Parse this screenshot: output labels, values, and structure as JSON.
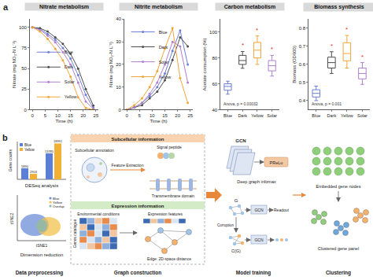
{
  "panel_labels": [
    "a",
    "b"
  ],
  "chart_data": [
    {
      "type": "line",
      "title": "Nitrate metabolism",
      "x_label": "Time (h)",
      "y_label": "Nitrate (mg NO₃-N L⁻¹)",
      "x": [
        0,
        3,
        6,
        9,
        12,
        15,
        18,
        21,
        24
      ],
      "series": [
        {
          "name": "Blue",
          "color": "#6c7fd8",
          "values": [
            100,
            98,
            92,
            85,
            75,
            62,
            42,
            18,
            2
          ]
        },
        {
          "name": "Dark",
          "color": "#4d4d4d",
          "values": [
            100,
            99,
            95,
            88,
            80,
            68,
            50,
            25,
            5
          ]
        },
        {
          "name": "Solar",
          "color": "#b07fd0",
          "values": [
            100,
            97,
            90,
            82,
            70,
            55,
            33,
            10,
            1
          ]
        },
        {
          "name": "Yellow",
          "color": "#f0a53a",
          "values": [
            100,
            95,
            86,
            74,
            60,
            40,
            15,
            2,
            0
          ]
        }
      ],
      "xlim": [
        -1,
        26
      ],
      "xticks": [
        0,
        5,
        10,
        15,
        20,
        25
      ],
      "ylim": [
        0,
        110
      ],
      "yticks": [
        0,
        25,
        50,
        75,
        100
      ],
      "marker": "circle",
      "legend": "lower left",
      "grid": false
    },
    {
      "type": "line",
      "title": "Nitrite metabolism",
      "x_label": "Time (h)",
      "y_label": "Nitrite (mg NO₂-N L⁻¹)",
      "x": [
        0,
        3,
        6,
        9,
        12,
        15,
        18,
        21,
        24
      ],
      "series": [
        {
          "name": "Blue",
          "color": "#6c7fd8",
          "values": [
            0,
            1,
            3,
            6,
            10,
            16,
            26,
            35,
            20
          ]
        },
        {
          "name": "Dark",
          "color": "#4d4d4d",
          "values": [
            0,
            1,
            2,
            5,
            8,
            13,
            22,
            32,
            28
          ]
        },
        {
          "name": "Solar",
          "color": "#b07fd0",
          "values": [
            0,
            1,
            3,
            7,
            12,
            20,
            30,
            28,
            12
          ]
        },
        {
          "name": "Yellow",
          "color": "#f0a53a",
          "values": [
            0,
            2,
            5,
            10,
            17,
            27,
            36,
            14,
            3
          ]
        }
      ],
      "xlim": [
        -1,
        26
      ],
      "xticks": [
        0,
        5,
        10,
        15,
        20,
        25
      ],
      "ylim": [
        0,
        40
      ],
      "yticks": [
        0,
        10,
        20,
        30,
        40
      ],
      "marker": "circle",
      "legend": "upper left",
      "grid": false
    },
    {
      "type": "box",
      "title": "Carbon metabolism",
      "y_label": "Acetate consumption (%)",
      "categories": [
        "Blue",
        "Dark",
        "Yellow",
        "Solar"
      ],
      "colors": [
        "#6c7fd8",
        "#4d4d4d",
        "#f0a53a",
        "#b07fd0"
      ],
      "boxes": [
        {
          "q1": 55,
          "median": 58,
          "q3": 60,
          "min": 52,
          "max": 62
        },
        {
          "q1": 75,
          "median": 78,
          "q3": 82,
          "min": 72,
          "max": 85
        },
        {
          "q1": 80,
          "median": 86,
          "q3": 92,
          "min": 75,
          "max": 97
        },
        {
          "q1": 70,
          "median": 74,
          "q3": 78,
          "min": 66,
          "max": 82
        }
      ],
      "significance": [
        null,
        "*",
        "*",
        "*"
      ],
      "note": "Anova, p = 0.00032",
      "ylim": [
        40,
        110
      ],
      "yticks": [
        40,
        60,
        80,
        100
      ],
      "grid": false
    },
    {
      "type": "box",
      "title": "Biomass synthesis",
      "y_label": "Biomass (OD600)",
      "categories": [
        "Blue",
        "Dark",
        "Yellow",
        "Solar"
      ],
      "colors": [
        "#6c7fd8",
        "#4d4d4d",
        "#f0a53a",
        "#b07fd0"
      ],
      "boxes": [
        {
          "q1": 0.42,
          "median": 0.44,
          "q3": 0.46,
          "min": 0.4,
          "max": 0.48
        },
        {
          "q1": 0.58,
          "median": 0.61,
          "q3": 0.64,
          "min": 0.55,
          "max": 0.67
        },
        {
          "q1": 0.62,
          "median": 0.66,
          "q3": 0.72,
          "min": 0.58,
          "max": 0.76
        },
        {
          "q1": 0.52,
          "median": 0.55,
          "q3": 0.58,
          "min": 0.49,
          "max": 0.61
        }
      ],
      "significance": [
        null,
        "*",
        "*",
        "*"
      ],
      "note": "Anova, p = 0.001",
      "ylim": [
        0.35,
        0.85
      ],
      "yticks": [
        0.4,
        0.5,
        0.6,
        0.7,
        0.8
      ],
      "grid": false
    }
  ],
  "diagram": {
    "sections": [
      "Data preprocessing",
      "Graph construction",
      "Model training",
      "Clustering"
    ],
    "deseq": {
      "type": "bar",
      "title": "DESeq analysis",
      "y_label": "Gene counts",
      "series": [
        {
          "name": "Blue",
          "color": "#5b7fd6",
          "values": [
            5890,
            13785
          ]
        },
        {
          "name": "Yellow",
          "color": "#f2b134",
          "values": [
            2903,
            18991
          ]
        }
      ],
      "ylim": [
        0,
        20000
      ],
      "data_labels": true,
      "tick_labels": false
    },
    "tsne": {
      "title": "Dimension reduction",
      "x_label": "tSNE1",
      "y_label": "tSNE2",
      "legend": [
        {
          "name": "Blue",
          "color": "#6c8fd8"
        },
        {
          "name": "Yellow",
          "color": "#f2c14e"
        },
        {
          "name": "Overlap",
          "color": "#8fb8a8"
        }
      ]
    },
    "subcellular": {
      "header": "Subcellular information",
      "annotation": "Subcellular annotation",
      "signal": "Signal peptide",
      "extraction": "Feature Extraction",
      "transmembrane": "Transmembrane domain"
    },
    "expression": {
      "header": "Expression information",
      "conditions": "Environmental conditions",
      "genes": "Genes catalogue",
      "features": "Expression features",
      "edge": "Edge: 2D-space distance"
    },
    "model": {
      "gcn": [
        "GCN",
        "GCN",
        "GCN"
      ],
      "infomax": "Deep graph infomax",
      "activation": "PReLu",
      "graph": "G",
      "corrupted": "C(G)",
      "corruption": "Corruption",
      "readout": "Readout"
    },
    "clustering": {
      "embedded": "Embedded gene nodes",
      "clustered": "Clustered gene panel"
    }
  }
}
